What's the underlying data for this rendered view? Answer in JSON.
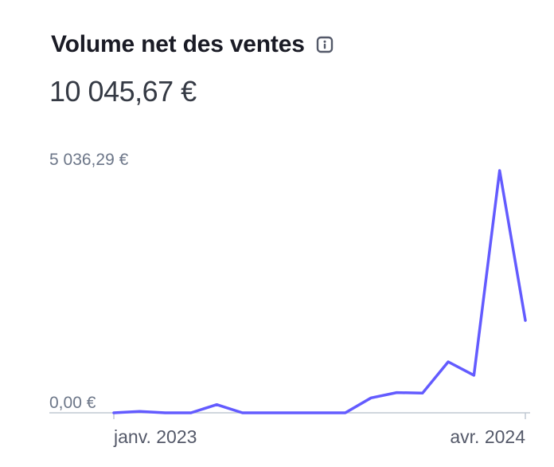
{
  "header": {
    "title": "Volume net des ventes",
    "info_icon": "info-icon",
    "total": "10 045,67 €"
  },
  "colors": {
    "line": "#635bff",
    "axis": "#c0c8d2",
    "title": "#1a1b25"
  },
  "chart_data": {
    "type": "line",
    "title": "Volume net des ventes",
    "xlabel": "",
    "ylabel": "",
    "y_tick_labels": [
      "5 036,29 €",
      "0,00 €"
    ],
    "x_tick_labels": [
      "janv. 2023",
      "avr. 2024"
    ],
    "ylim": [
      0,
      5036.29
    ],
    "grid": false,
    "series": [
      {
        "values": [
          0,
          30,
          0,
          0,
          170,
          0,
          0,
          0,
          0,
          0,
          310,
          420,
          410,
          1060,
          780,
          5036.29,
          1920
        ]
      }
    ]
  }
}
